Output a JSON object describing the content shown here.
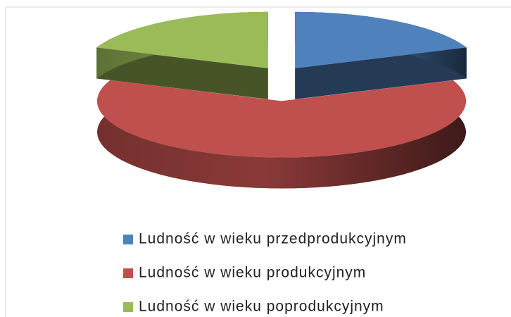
{
  "chart_data": {
    "type": "pie",
    "categories": [
      "Ludność w wieku przedprodukcyjnym",
      "Ludność w wieku produkcyjnym",
      "Ludność w wieku poprodukcyjnym"
    ],
    "values": [
      19,
      62,
      19
    ],
    "colors": [
      "#4f81bd",
      "#c0504d",
      "#9bbb59"
    ],
    "legend": "bottom"
  }
}
